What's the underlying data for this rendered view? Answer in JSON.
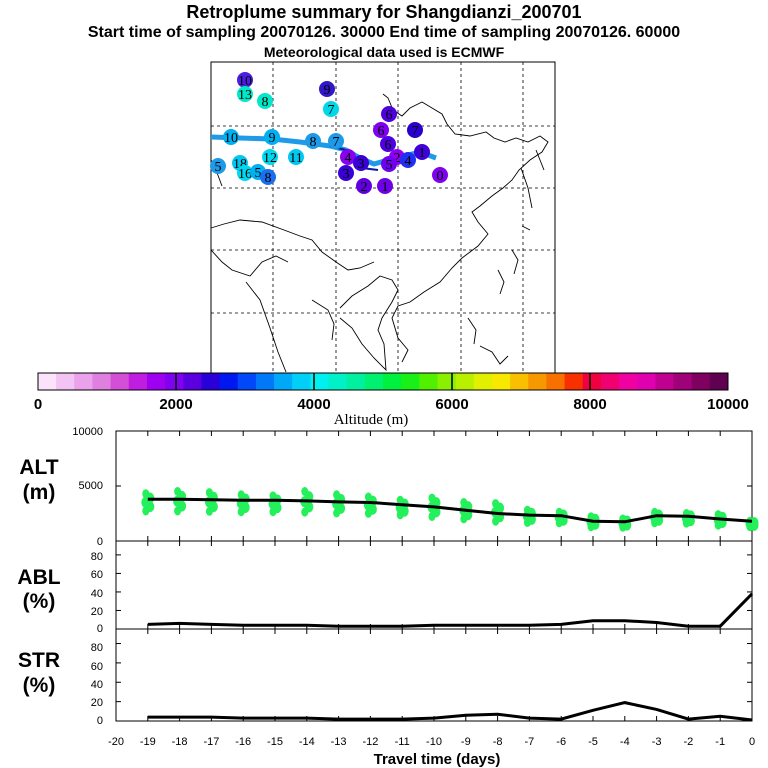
{
  "header": {
    "title": "Retroplume summary for Shangdianzi_200701",
    "sampling": "Start time of sampling 20070126. 30000     End time of sampling 20070126. 60000",
    "met": "Meteorological data used is ECMWF"
  },
  "colorbar": {
    "title": "Altitude (m)",
    "min": 0,
    "max": 10000,
    "tick_labels": [
      "0",
      "2000",
      "4000",
      "6000",
      "8000",
      "10000"
    ],
    "colors": [
      "#fbe3fb",
      "#f3c3f3",
      "#eaa2ea",
      "#df7fe0",
      "#d24fd6",
      "#bf1ee0",
      "#a000f0",
      "#8000f0",
      "#5a00e0",
      "#2a00d8",
      "#0018f0",
      "#0048f8",
      "#0078f8",
      "#00a8f8",
      "#00d0f8",
      "#00f0f0",
      "#00f0c8",
      "#00f0a0",
      "#00f070",
      "#00f040",
      "#18f018",
      "#50f000",
      "#88f000",
      "#b8f000",
      "#e0f000",
      "#f8e800",
      "#f8c000",
      "#f89800",
      "#f87000",
      "#f83000",
      "#f00040",
      "#f00070",
      "#f000a0",
      "#e000b0",
      "#c00090",
      "#a00078",
      "#800060",
      "#600050"
    ]
  },
  "map": {
    "trajectory_color": "#1e9be8",
    "plume_numbers": [
      {
        "label": "10",
        "color": "#4b1ee0"
      },
      {
        "label": "13",
        "color": "#00e8c8"
      },
      {
        "label": "8",
        "color": "#00e8c8"
      },
      {
        "label": "9",
        "color": "#3018c8"
      },
      {
        "label": "7",
        "color": "#00d8e8"
      },
      {
        "label": "10",
        "color": "#00b0f0"
      },
      {
        "label": "9",
        "color": "#00b0f0"
      },
      {
        "label": "8",
        "color": "#1e9be8"
      },
      {
        "label": "7",
        "color": "#1e9be8"
      },
      {
        "label": "12",
        "color": "#00d8f0"
      },
      {
        "label": "11",
        "color": "#00c8f0"
      },
      {
        "label": "5",
        "color": "#1e9be8"
      },
      {
        "label": "18",
        "color": "#00c8f0"
      },
      {
        "label": "16",
        "color": "#00d8f0"
      },
      {
        "label": "5",
        "color": "#00b0f0"
      },
      {
        "label": "8",
        "color": "#1a6ef0"
      },
      {
        "label": "6",
        "color": "#5000e0"
      },
      {
        "label": "6",
        "color": "#8000f0"
      },
      {
        "label": "4",
        "color": "#8800f0"
      },
      {
        "label": "3",
        "color": "#3a00d8"
      },
      {
        "label": "2",
        "color": "#9000f0"
      },
      {
        "label": "1",
        "color": "#4000d8"
      },
      {
        "label": "0",
        "color": "#8000f0"
      },
      {
        "label": "6",
        "color": "#5000e0"
      },
      {
        "label": "5",
        "color": "#7000f0"
      },
      {
        "label": "4",
        "color": "#2030f0"
      },
      {
        "label": "3",
        "color": "#3a00d8"
      },
      {
        "label": "2",
        "color": "#6000e0"
      },
      {
        "label": "1",
        "color": "#7000e8"
      },
      {
        "label": "7",
        "color": "#2a00d0"
      }
    ]
  },
  "panels": {
    "alt": {
      "label_top": "ALT",
      "label_bottom": "(m)",
      "yticks": [
        "10000",
        "5000",
        "0"
      ]
    },
    "abl": {
      "label_top": "ABL",
      "label_bottom": "(%)",
      "yticks": [
        "80",
        "60",
        "40",
        "20",
        "0"
      ]
    },
    "str": {
      "label_top": "STR",
      "label_bottom": "(%)",
      "yticks": [
        "80",
        "60",
        "40",
        "20",
        "0"
      ]
    }
  },
  "chart_data": [
    {
      "type": "line",
      "title": "ALT",
      "xlabel": "Travel time (days)",
      "ylabel": "ALT (m)",
      "xlim": [
        -20,
        0
      ],
      "ylim": [
        0,
        10000
      ],
      "dot_color": "#23f05a",
      "series": [
        {
          "name": "mean altitude",
          "x": [
            -19,
            -18,
            -17,
            -16,
            -15,
            -14,
            -13,
            -12,
            -11,
            -10,
            -9,
            -8,
            -7,
            -6,
            -5,
            -4,
            -3,
            -2,
            -1,
            0
          ],
          "values": [
            3800,
            3800,
            3750,
            3700,
            3700,
            3650,
            3550,
            3500,
            3300,
            3100,
            2800,
            2500,
            2350,
            2300,
            1800,
            1750,
            2300,
            2250,
            2000,
            1800
          ]
        },
        {
          "name": "plume spread",
          "x": [
            -19,
            -18,
            -17,
            -16,
            -15,
            -14,
            -13,
            -12,
            -11,
            -10,
            -9,
            -8,
            -7,
            -6,
            -5,
            -4,
            -3,
            -2,
            -1,
            0
          ],
          "values": [
            4300,
            4500,
            4400,
            4200,
            4100,
            4500,
            4200,
            4000,
            3700,
            3900,
            3500,
            3400,
            2800,
            2600,
            2200,
            2000,
            2600,
            2500,
            2400,
            1800
          ]
        }
      ],
      "xticks": [
        "-20",
        "-19",
        "-18",
        "-17",
        "-16",
        "-15",
        "-14",
        "-13",
        "-12",
        "-11",
        "-10",
        "-9",
        "-8",
        "-7",
        "-6",
        "-5",
        "-4",
        "-3",
        "-2",
        "-1",
        "0"
      ]
    },
    {
      "type": "line",
      "title": "ABL",
      "xlabel": "Travel time (days)",
      "ylabel": "ABL (%)",
      "xlim": [
        -20,
        0
      ],
      "ylim": [
        0,
        95
      ],
      "series": [
        {
          "name": "ABL",
          "x": [
            -19,
            -18,
            -17,
            -16,
            -15,
            -14,
            -13,
            -12,
            -11,
            -10,
            -9,
            -8,
            -7,
            -6,
            -5,
            -4,
            -3,
            -2,
            -1,
            0
          ],
          "values": [
            5,
            6,
            5,
            4,
            4,
            4,
            3,
            3,
            3,
            4,
            4,
            4,
            4,
            5,
            9,
            9,
            7,
            3,
            3,
            38
          ]
        }
      ]
    },
    {
      "type": "line",
      "title": "STR",
      "xlabel": "Travel time (days)",
      "ylabel": "STR (%)",
      "xlim": [
        -20,
        0
      ],
      "ylim": [
        0,
        95
      ],
      "series": [
        {
          "name": "STR",
          "x": [
            -19,
            -18,
            -17,
            -16,
            -15,
            -14,
            -13,
            -12,
            -11,
            -10,
            -9,
            -8,
            -7,
            -6,
            -5,
            -4,
            -3,
            -2,
            -1,
            0
          ],
          "values": [
            4,
            4,
            4,
            3,
            3,
            3,
            2,
            2,
            2,
            3,
            6,
            7,
            3,
            2,
            11,
            19,
            12,
            2,
            5,
            1
          ]
        }
      ],
      "xticks": [
        "-20",
        "-19",
        "-18",
        "-17",
        "-16",
        "-15",
        "-14",
        "-13",
        "-12",
        "-11",
        "-10",
        "-9",
        "-8",
        "-7",
        "-6",
        "-5",
        "-4",
        "-3",
        "-2",
        "-1",
        "0"
      ]
    }
  ]
}
